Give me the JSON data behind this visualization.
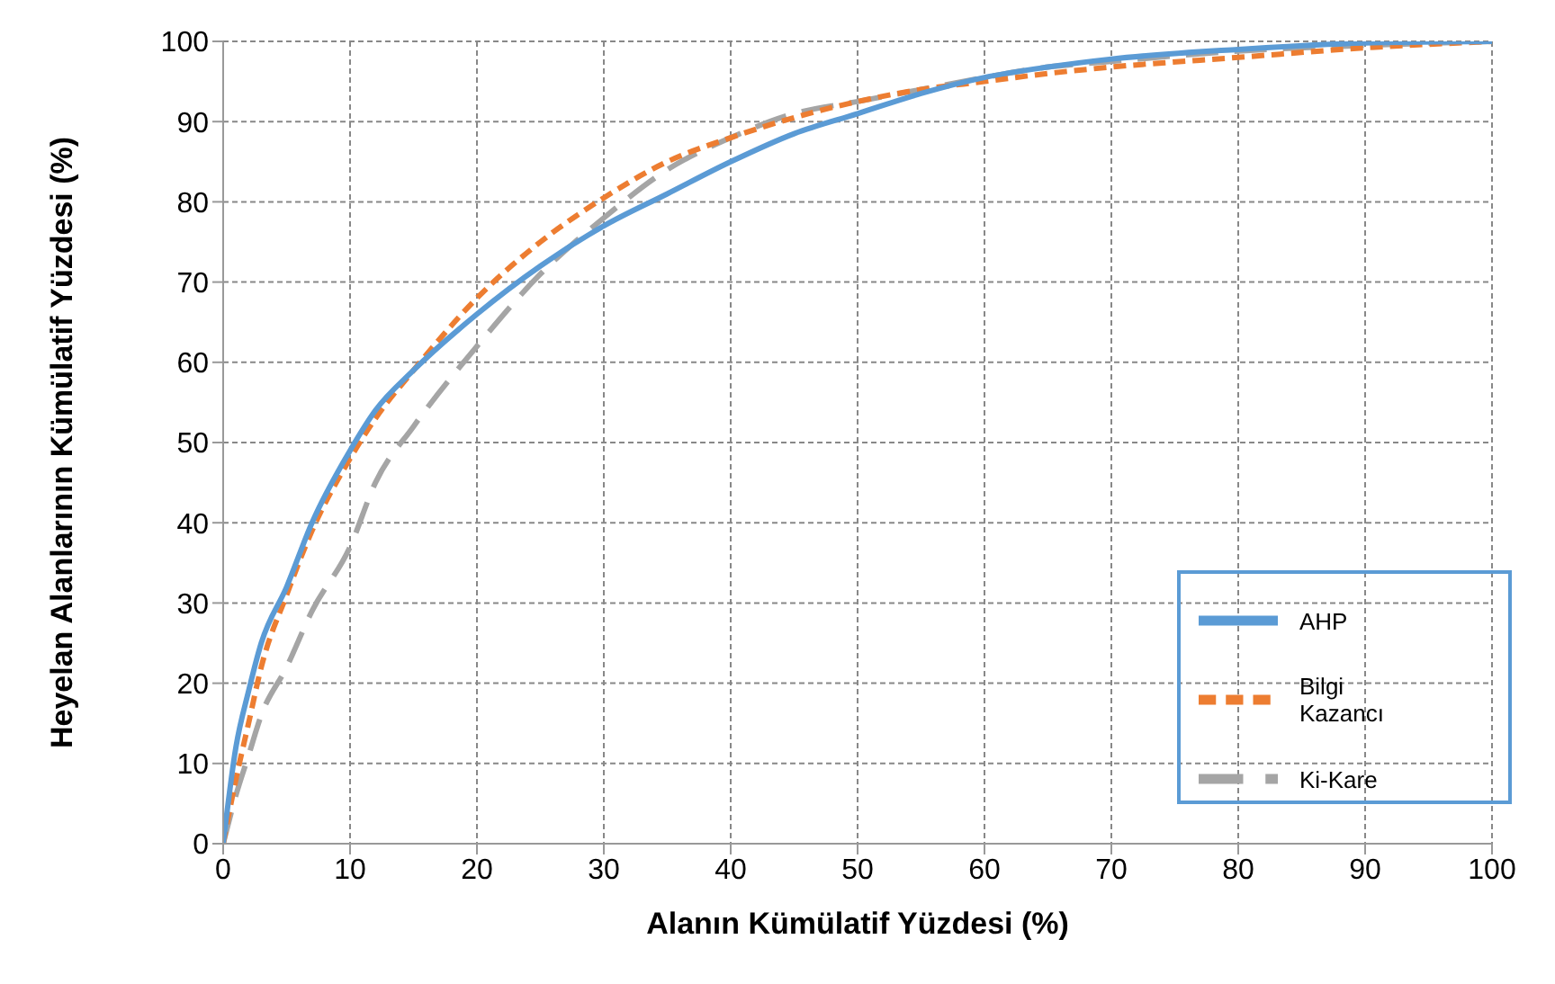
{
  "chart_data": {
    "type": "line",
    "xlabel": "Alanın Kümülatif Yüzdesi (%)",
    "ylabel": "Heyelan Alanlarının Kümülatif Yüzdesi (%)",
    "x": [
      0,
      1,
      2,
      3,
      5,
      7,
      10,
      12,
      15,
      20,
      25,
      30,
      35,
      40,
      45,
      50,
      55,
      60,
      65,
      70,
      80,
      90,
      100
    ],
    "series": [
      {
        "name": "Ki-Kare",
        "color": "#a5a5a5",
        "line_style": "dashed",
        "values": [
          0,
          6,
          11,
          16,
          22,
          29,
          37,
          45,
          52,
          62,
          71,
          78,
          84,
          88,
          91,
          92.5,
          94,
          95.5,
          96.8,
          97.5,
          98.8,
          99.5,
          100
        ]
      },
      {
        "name": "Bilgi Kazancı",
        "color": "#ed7d31",
        "line_style": "dotted",
        "values": [
          0,
          8,
          15,
          22,
          31,
          39,
          48,
          53,
          59,
          68,
          75,
          80.5,
          85,
          88,
          90.5,
          92.5,
          94,
          95,
          96,
          96.8,
          98,
          99.2,
          100
        ]
      },
      {
        "name": "AHP",
        "color": "#5b9bd5",
        "line_style": "solid",
        "values": [
          0,
          12,
          19,
          25,
          32,
          40,
          49,
          54,
          59,
          66,
          72,
          77,
          81,
          85,
          88.5,
          91,
          93.5,
          95.5,
          96.8,
          97.8,
          99,
          99.8,
          100
        ]
      }
    ],
    "xlim": [
      0,
      100
    ],
    "xticks": [
      0,
      10,
      20,
      30,
      40,
      50,
      60,
      70,
      80,
      90,
      100
    ],
    "ylim": [
      0,
      100
    ],
    "yticks": [
      0,
      10,
      20,
      30,
      40,
      50,
      60,
      70,
      80,
      90,
      100
    ],
    "grid": true,
    "legend": "bottom right",
    "marker": "none"
  }
}
